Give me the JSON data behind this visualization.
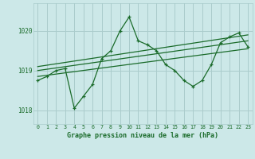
{
  "title": "Graphe pression niveau de la mer (hPa)",
  "background_color": "#cce8e8",
  "grid_color": "#aacccc",
  "line_color": "#1a6b2a",
  "text_color": "#1a6b2a",
  "ylim": [
    1017.65,
    1020.7
  ],
  "xlim": [
    -0.5,
    23.5
  ],
  "yticks": [
    1018,
    1019,
    1020
  ],
  "xticks": [
    0,
    1,
    2,
    3,
    4,
    5,
    6,
    7,
    8,
    9,
    10,
    11,
    12,
    13,
    14,
    15,
    16,
    17,
    18,
    19,
    20,
    21,
    22,
    23
  ],
  "main_series": {
    "x": [
      0,
      1,
      2,
      3,
      4,
      5,
      6,
      7,
      8,
      9,
      10,
      11,
      12,
      13,
      14,
      15,
      16,
      17,
      18,
      19,
      20,
      21,
      22,
      23
    ],
    "y": [
      1018.75,
      1018.85,
      1019.0,
      1019.05,
      1018.05,
      1018.35,
      1018.65,
      1019.3,
      1019.5,
      1020.0,
      1020.35,
      1019.75,
      1019.65,
      1019.5,
      1019.15,
      1019.0,
      1018.75,
      1018.6,
      1018.75,
      1019.15,
      1019.7,
      1019.85,
      1019.95,
      1019.6
    ]
  },
  "trend_lines": [
    {
      "x": [
        0,
        23
      ],
      "y": [
        1018.85,
        1019.55
      ]
    },
    {
      "x": [
        0,
        23
      ],
      "y": [
        1019.0,
        1019.75
      ]
    },
    {
      "x": [
        0,
        23
      ],
      "y": [
        1019.1,
        1019.9
      ]
    }
  ]
}
